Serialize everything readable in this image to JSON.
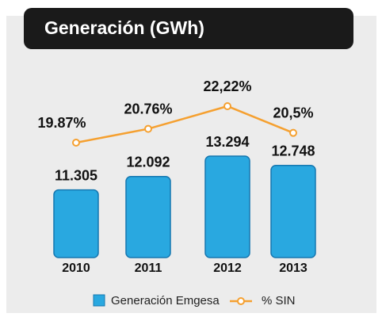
{
  "chart_data": {
    "type": "bar",
    "title": "Generación (GWh)",
    "categories": [
      "2010",
      "2011",
      "2012",
      "2013"
    ],
    "series": [
      {
        "name": "Generación Emgesa",
        "type": "bar",
        "color": "#29a8e0",
        "values": [
          11305,
          12092,
          13294,
          12748
        ],
        "value_labels": [
          "11.305",
          "12.092",
          "13.294",
          "12.748"
        ]
      },
      {
        "name": "% SIN",
        "type": "line",
        "color": "#f5a030",
        "values": [
          19.87,
          20.76,
          22.22,
          20.5
        ],
        "value_labels": [
          "19.87%",
          "20.76%",
          "22,22%",
          "20,5%"
        ]
      }
    ]
  }
}
